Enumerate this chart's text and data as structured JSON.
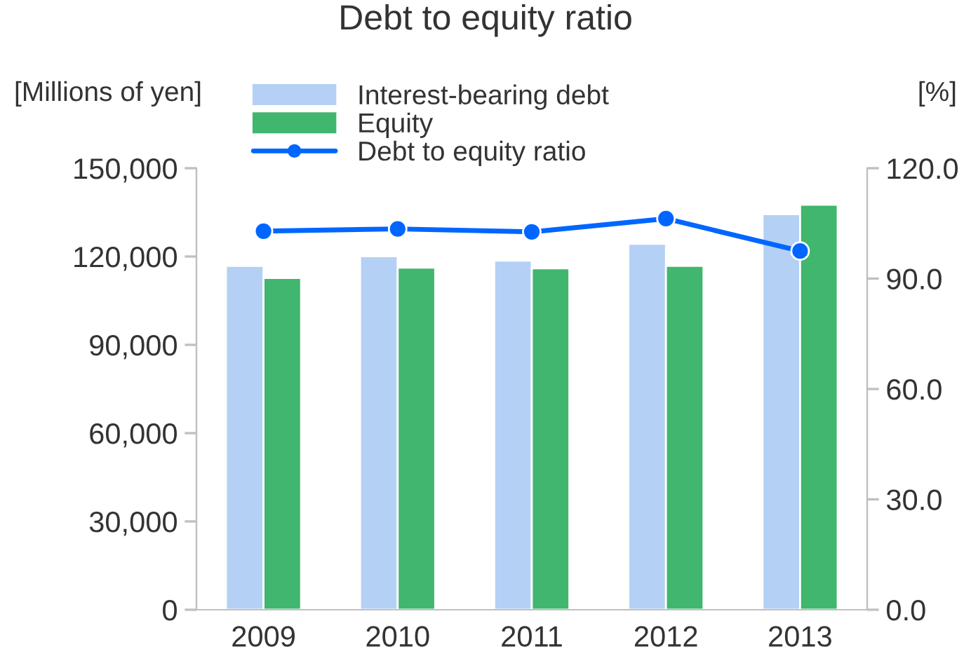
{
  "chart_data": {
    "type": "bar",
    "title": "Debt to equity ratio",
    "ylabel": "[Millions of yen]",
    "y2label": "[%]",
    "categories": [
      "2009",
      "2010",
      "2011",
      "2012",
      "2013"
    ],
    "series": [
      {
        "name": "Interest-bearing debt",
        "color": "#b4d0f4",
        "values": [
          116800,
          120100,
          118600,
          124300,
          134400
        ]
      },
      {
        "name": "Equity",
        "color": "#40b66e",
        "values": [
          112700,
          116200,
          116000,
          116800,
          137600
        ]
      },
      {
        "name": "Debt to equity ratio",
        "type": "line",
        "axis": "y2",
        "color": "#0066ff",
        "marker": "circle",
        "line_style": "solid",
        "values": [
          102.9,
          103.5,
          102.7,
          106.3,
          97.5
        ]
      }
    ],
    "ylim": [
      0,
      150000
    ],
    "yticks": [
      {
        "value": 0,
        "label": "0"
      },
      {
        "value": 30000,
        "label": "30,000"
      },
      {
        "value": 60000,
        "label": "60,000"
      },
      {
        "value": 90000,
        "label": "90,000"
      },
      {
        "value": 120000,
        "label": "120,000"
      },
      {
        "value": 150000,
        "label": "150,000"
      }
    ],
    "y2lim": [
      0,
      120
    ],
    "y2ticks": [
      {
        "value": 0,
        "label": "0.0"
      },
      {
        "value": 30,
        "label": "30.0"
      },
      {
        "value": 60,
        "label": "60.0"
      },
      {
        "value": 90,
        "label": "90.0"
      },
      {
        "value": 120,
        "label": "120.0"
      }
    ],
    "grid": false,
    "legend": "top"
  }
}
